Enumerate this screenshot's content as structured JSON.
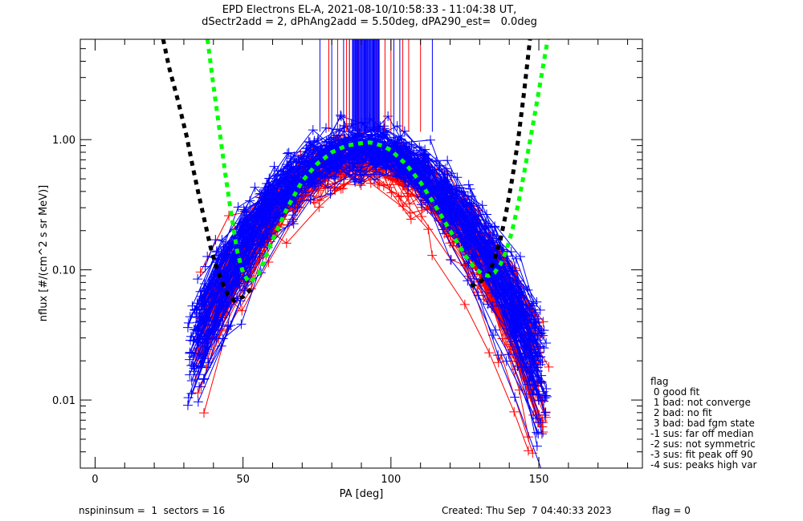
{
  "chart_data": {
    "type": "line",
    "title": "EPD Electrons EL-A, 2021-08-10/10:58:33 - 11:04:38 UT,",
    "subtitle": "dSectr2add = 2, dPhAng2add = 5.50deg, dPA290_est=   0.0deg",
    "xlabel": "PA [deg]",
    "ylabel": "nflux [#/(cm^2 s sr MeV)]",
    "xlim": [
      -5,
      185
    ],
    "ylim": [
      0.003,
      5.9
    ],
    "yscale": "log",
    "x_ticks": [
      0,
      50,
      100,
      150
    ],
    "x_tick_labels": [
      "0",
      "50",
      "100",
      "150"
    ],
    "x_minor_step": 10,
    "y_ticks": [
      0.01,
      0.1,
      1.0
    ],
    "y_tick_labels": [
      "0.01",
      "0.10",
      "1.00"
    ],
    "grid": false,
    "series": [
      {
        "name": "measured spectra (blue)",
        "color": "#0000ff",
        "style": "line+plus",
        "model": {
          "peak_pa": 90,
          "peak_flux": 0.85,
          "width_deg": 24,
          "count": 90,
          "pa_start": 33,
          "pa_end": 147,
          "sectors": 16
        }
      },
      {
        "name": "measured spectra (red)",
        "color": "#ff0000",
        "style": "line+plus",
        "model": {
          "peak_pa": 90,
          "peak_flux": 0.7,
          "width_deg": 24,
          "count": 60,
          "pa_start": 35,
          "pa_end": 147,
          "sectors": 16
        }
      },
      {
        "name": "fit (black)",
        "color": "#000000",
        "style": "dashed-thick",
        "x": [
          23,
          25,
          28,
          31,
          33,
          35,
          37,
          39,
          41,
          43,
          45,
          47,
          50,
          53,
          127,
          130,
          133,
          135,
          137,
          139,
          141,
          143,
          145,
          147
        ],
        "y": [
          5.9,
          3.6,
          2.0,
          1.05,
          0.62,
          0.38,
          0.24,
          0.15,
          0.105,
          0.08,
          0.064,
          0.058,
          0.062,
          0.072,
          0.075,
          0.08,
          0.092,
          0.12,
          0.17,
          0.28,
          0.5,
          1.0,
          2.3,
          5.9
        ]
      },
      {
        "name": "fit (green)",
        "color": "#00ff00",
        "style": "dashed-thick",
        "x": [
          38,
          40,
          42,
          44,
          46,
          48,
          50,
          52,
          55,
          60,
          65,
          70,
          75,
          80,
          85,
          90,
          93,
          97,
          100,
          105,
          110,
          115,
          120,
          125,
          128,
          131,
          133,
          135,
          137,
          139,
          141,
          143,
          145,
          148,
          151,
          153
        ],
        "y": [
          5.9,
          2.6,
          1.2,
          0.55,
          0.27,
          0.14,
          0.095,
          0.08,
          0.09,
          0.17,
          0.3,
          0.48,
          0.65,
          0.8,
          0.9,
          0.94,
          0.95,
          0.9,
          0.83,
          0.65,
          0.47,
          0.31,
          0.2,
          0.13,
          0.105,
          0.092,
          0.09,
          0.095,
          0.11,
          0.14,
          0.2,
          0.32,
          0.55,
          1.3,
          3.2,
          5.9
        ]
      }
    ],
    "saturated_lines": {
      "note": "vertical traces extending above plot top near PA 75-115",
      "blue_pa": [
        76,
        80,
        84,
        86,
        87,
        88,
        89,
        90,
        91,
        92,
        93,
        94,
        95,
        96,
        101,
        103,
        114
      ],
      "red_pa": [
        79,
        82,
        85,
        86,
        89,
        92,
        95,
        98,
        100,
        104,
        106,
        110
      ],
      "bottom_flux": [
        1.15,
        1.15,
        1.2,
        1.15,
        1.15,
        1.15,
        1.15,
        1.15,
        1.15,
        1.15,
        1.15,
        1.2,
        1.15,
        1.15,
        1.15,
        1.15,
        1.15
      ]
    }
  },
  "legend": {
    "title": "flag",
    "items": [
      " 0 good fit",
      " 1 bad: not converge",
      " 2 bad: no fit",
      " 3 bad: bad fgm state",
      "-1 sus: far off median",
      "-2 sus: not symmetric",
      "-3 sus: fit peak off 90",
      "-4 sus: peaks high var"
    ]
  },
  "footer": {
    "left": "nspininsum =  1  sectors = 16",
    "created": "Created: Thu Sep  7 04:40:33 2023",
    "flag": "flag = 0"
  }
}
